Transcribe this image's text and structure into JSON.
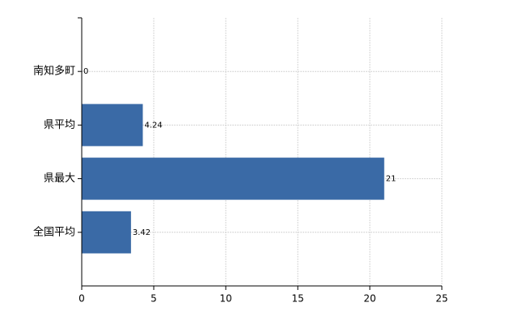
{
  "chart_data": {
    "type": "barh",
    "categories": [
      "南知多町",
      "県平均",
      "県最大",
      "全国平均"
    ],
    "values": [
      0,
      4.24,
      21,
      3.42
    ],
    "color": "#3a6aa6",
    "xlim": [
      0,
      25
    ],
    "xticks": [
      0,
      5,
      10,
      15,
      20,
      25
    ],
    "grid": true
  }
}
